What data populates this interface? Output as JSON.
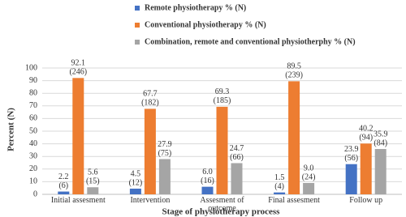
{
  "chart_data": {
    "type": "bar",
    "categories": [
      "Initial assesment",
      "Intervention",
      "Assesment of outcome",
      "Final assesment",
      "Follow up"
    ],
    "series": [
      {
        "name": "Remote physiotherapy %  (N)",
        "color": "#4472c4",
        "values": [
          2.2,
          4.5,
          6.0,
          1.5,
          23.9
        ],
        "value_labels": [
          "2.2",
          "4.5",
          "6.0",
          "1.5",
          "23.9"
        ],
        "counts": [
          "(6)",
          "(12)",
          "(16)",
          "(4)",
          "(56)"
        ]
      },
      {
        "name": "Conventional physiotherapy %  (N)",
        "color": "#ed7d31",
        "values": [
          92.1,
          67.7,
          69.3,
          89.5,
          40.2
        ],
        "counts": [
          "(246)",
          "(182)",
          "(185)",
          "(239)",
          "(94)"
        ]
      },
      {
        "name": "Combination, remote and conventional physiotherphy % (N)",
        "color": "#a5a5a5",
        "values": [
          5.6,
          27.9,
          24.7,
          9.0,
          35.9
        ],
        "value_labels": [
          "5.6",
          "27.9",
          "24.7",
          "9.0",
          "35.9"
        ],
        "counts": [
          "(15)",
          "(75)",
          "(66)",
          "(24)",
          "(84)"
        ]
      }
    ],
    "ylim": [
      0,
      100
    ],
    "yticks": [
      0,
      10,
      20,
      30,
      40,
      50,
      60,
      70,
      80,
      90,
      100
    ],
    "ylabel": "Percent  (N)",
    "xlabel": "Stage of physiotherapy process",
    "grid": true,
    "legend": "top-left"
  }
}
